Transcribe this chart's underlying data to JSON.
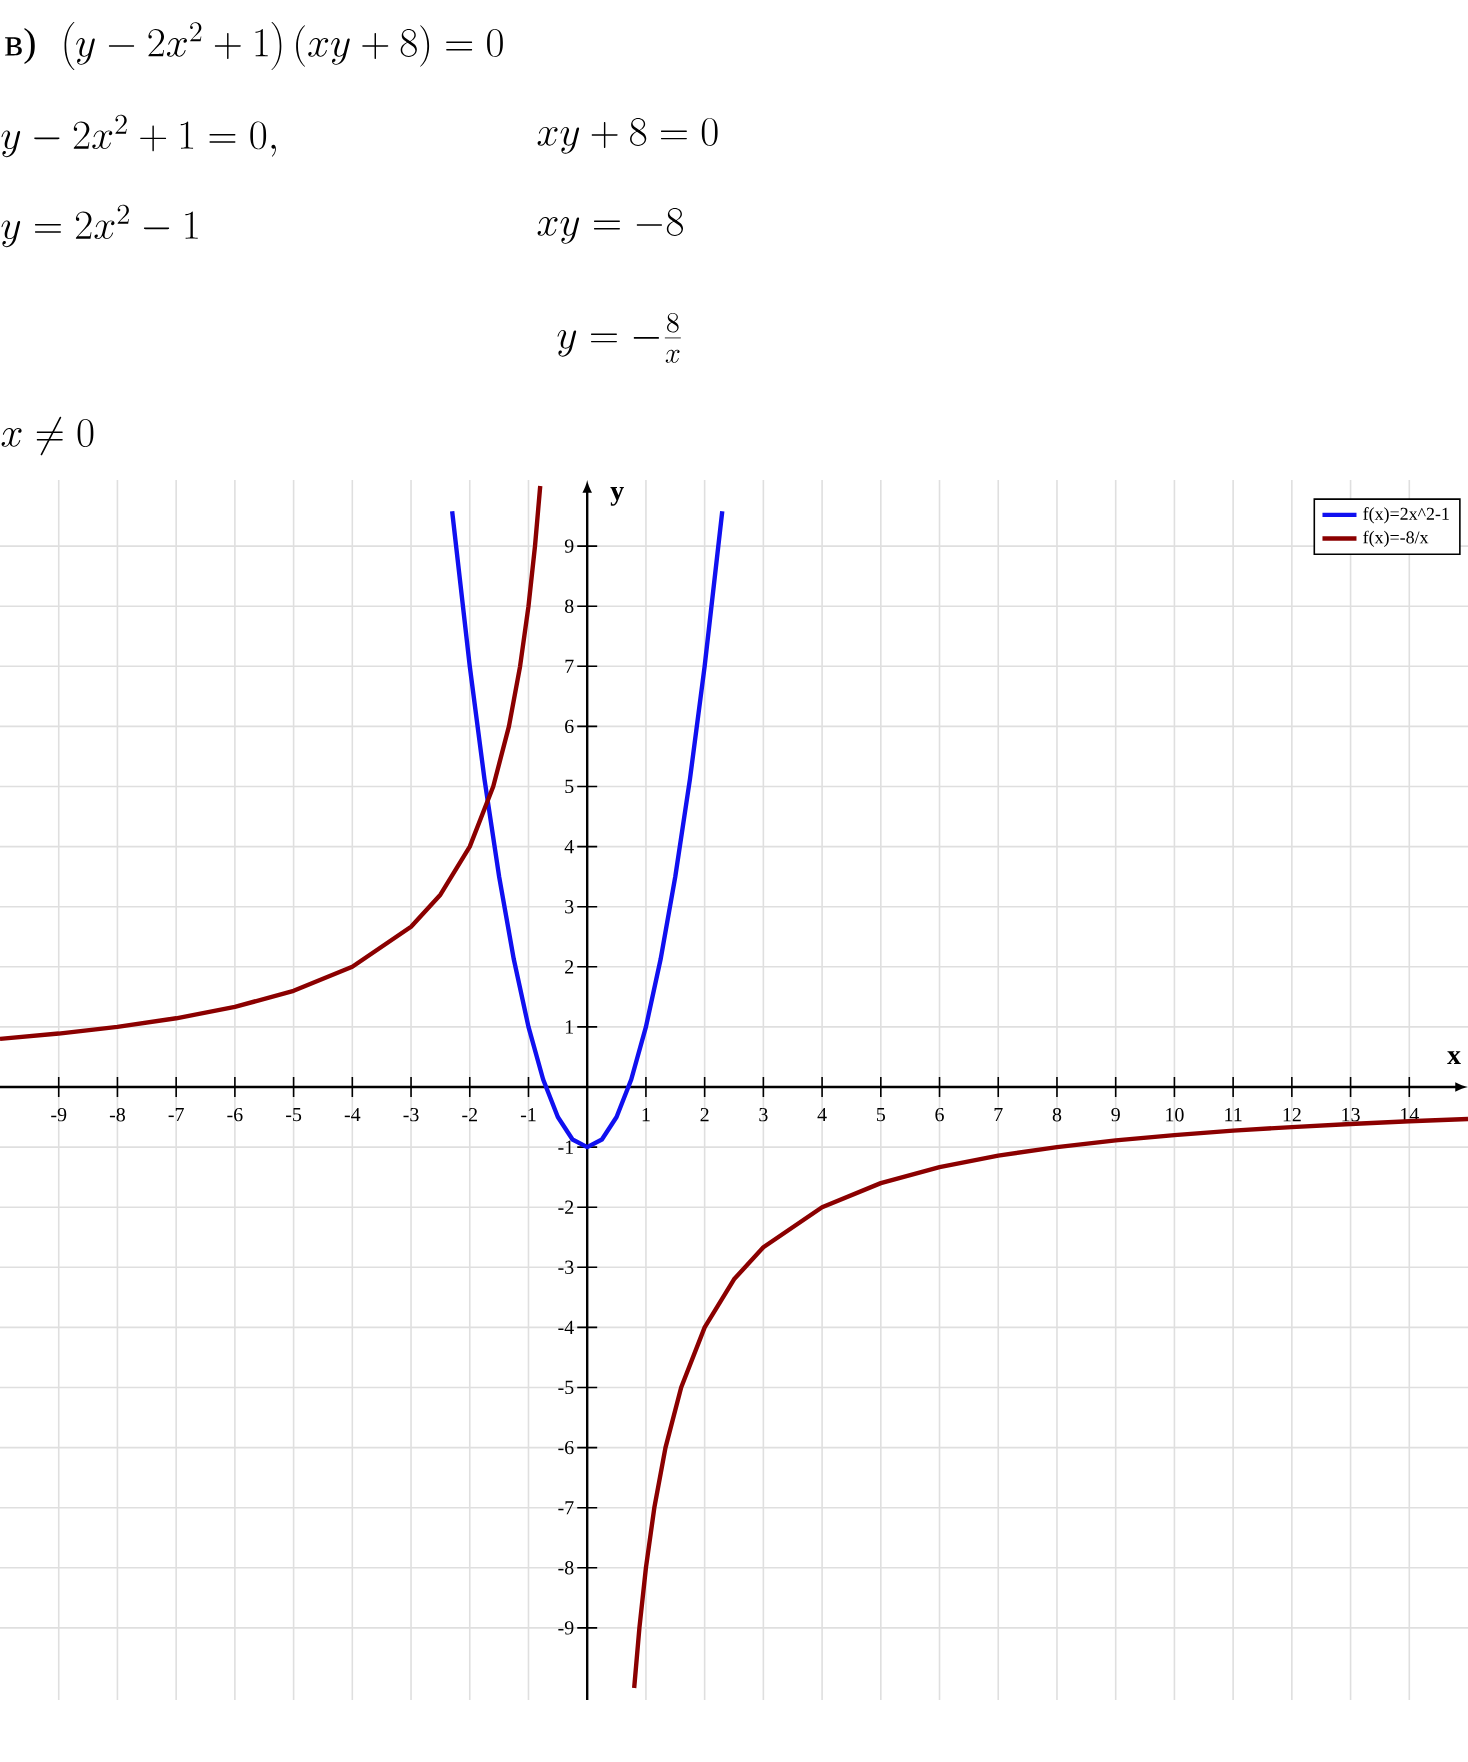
{
  "chart_data": {
    "type": "line",
    "annotations": [
      "в)",
      "\\left(y-2x^2+1\\right)(xy+8)=0",
      "y-2x^2+1=0,",
      "xy+8=0",
      "y=2x^2-1",
      "xy=-8",
      "y=-\\frac{8}{x}",
      "x\\neq 0"
    ],
    "xlabel": "x",
    "ylabel": "y",
    "series": [
      {
        "name": "f(x)=2x^2-1",
        "color": "#1010f0",
        "x": [
          -2.3,
          -2,
          -1.75,
          -1.5,
          -1.25,
          -1,
          -0.75,
          -0.5,
          -0.25,
          0,
          0.25,
          0.5,
          0.75,
          1,
          1.25,
          1.5,
          1.75,
          2,
          2.3
        ],
        "values": [
          9.58,
          7,
          5.125,
          3.5,
          2.125,
          1,
          0.125,
          -0.5,
          -0.875,
          -1,
          -0.875,
          -0.5,
          0.125,
          1,
          2.125,
          3.5,
          5.125,
          7,
          9.58
        ]
      },
      {
        "name": "f(x)=-8/x",
        "color": "#8b0000",
        "x": [
          -10,
          -9,
          -8,
          -7,
          -6,
          -5,
          -4,
          -3,
          -2.5,
          -2,
          -1.6,
          -1.333,
          -1.143,
          -1,
          -0.889,
          -0.8,
          0,
          0.8,
          0.889,
          1,
          1.143,
          1.333,
          1.6,
          2,
          2.5,
          3,
          4,
          5,
          6,
          7,
          8,
          9,
          10,
          11,
          12,
          13,
          14,
          15
        ],
        "values": [
          0.8,
          0.889,
          1,
          1.143,
          1.333,
          1.6,
          2,
          2.667,
          3.2,
          4,
          5,
          6,
          7,
          8,
          9,
          10,
          null,
          -10,
          -9,
          -8,
          -7,
          -6,
          -5,
          -4,
          -3.2,
          -2.667,
          -2,
          -1.6,
          -1.333,
          -1.143,
          -1,
          -0.889,
          -0.8,
          -0.727,
          -0.667,
          -0.615,
          -0.571,
          -0.533
        ]
      }
    ],
    "xlim": [
      -10,
      15
    ],
    "ylim": [
      -10.2,
      10.1
    ],
    "xticks": [
      -9,
      -8,
      -7,
      -6,
      -5,
      -4,
      -3,
      -2,
      -1,
      1,
      2,
      3,
      4,
      5,
      6,
      7,
      8,
      9,
      10,
      11,
      12,
      13,
      14
    ],
    "yticks": [
      -9,
      -8,
      -7,
      -6,
      -5,
      -4,
      -3,
      -2,
      -1,
      1,
      2,
      3,
      4,
      5,
      6,
      7,
      8,
      9
    ],
    "grid": true,
    "legend": "top right",
    "marker": "none",
    "line_style": "solid"
  }
}
